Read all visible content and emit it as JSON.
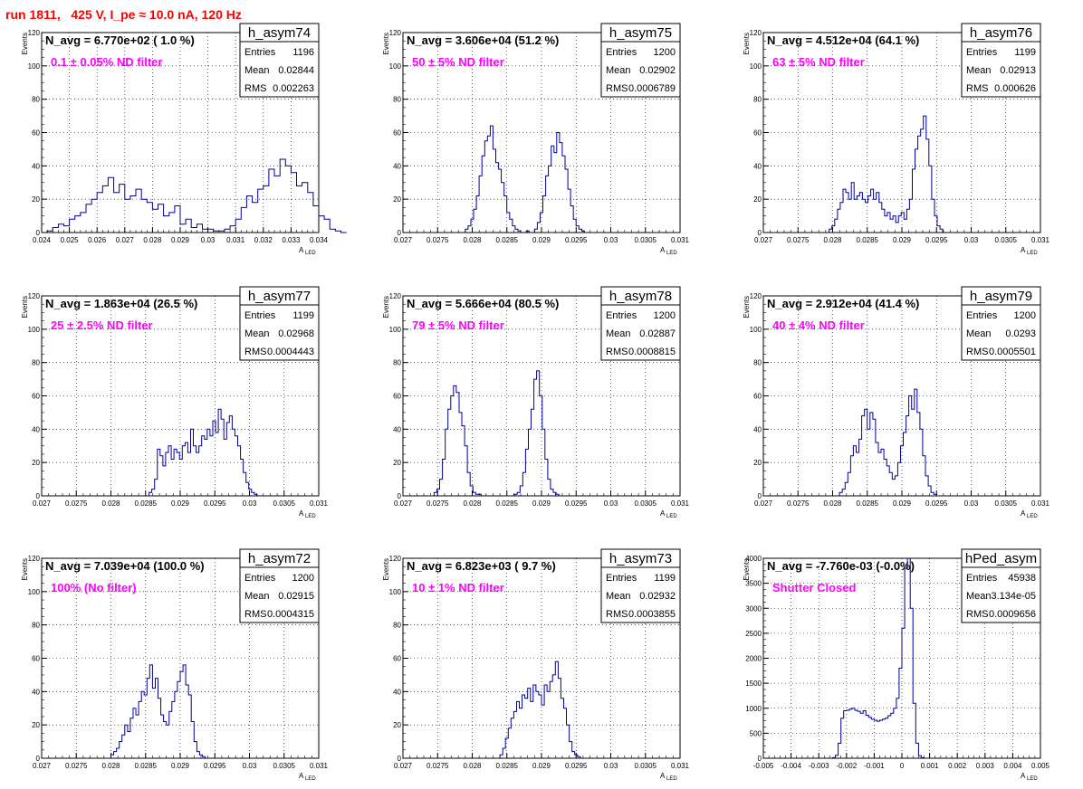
{
  "title": "run 1811,   425 V, I_pe ≈ 10.0 nA, 120 Hz",
  "colors": {
    "title": "#ff0000",
    "filter_label": "#ff00ff",
    "histogram": "#000099",
    "grid": "#000000"
  },
  "axis_labels": {
    "x_main": "A",
    "x_sub": "LED",
    "y": "Events"
  },
  "stats_labels": {
    "entries": "Entries",
    "mean": "Mean",
    "rms": "RMS"
  },
  "chart_data": [
    {
      "type": "histogram",
      "name": "h_asym74",
      "navg": "N_avg = 6.770e+02 ( 1.0 %)",
      "filter": "0.1 ± 0.05% ND filter",
      "stats": {
        "entries": "1196",
        "mean": "0.02844",
        "rms": "0.002263"
      },
      "xlim": [
        0.024,
        0.034
      ],
      "ylim": [
        0,
        120
      ],
      "xticks": [
        "0.024",
        "0.025",
        "0.026",
        "0.027",
        "0.028",
        "0.029",
        "0.03",
        "0.031",
        "0.032",
        "0.033",
        "0.034"
      ],
      "yticks": [
        "0",
        "20",
        "40",
        "60",
        "80",
        "100",
        "120"
      ],
      "x_start": 0.0242,
      "bin_width": 0.0002,
      "counts": [
        1,
        3,
        5,
        4,
        8,
        10,
        12,
        17,
        20,
        24,
        28,
        33,
        24,
        29,
        20,
        22,
        26,
        20,
        18,
        14,
        17,
        10,
        12,
        16,
        5,
        8,
        3,
        5,
        2,
        2,
        1,
        1,
        2,
        4,
        8,
        15,
        22,
        18,
        26,
        28,
        38,
        34,
        44,
        40,
        36,
        28,
        30,
        24,
        16,
        10,
        8,
        2,
        1,
        0
      ]
    },
    {
      "type": "histogram",
      "name": "h_asym75",
      "navg": "N_avg = 3.606e+04 (51.2 %)",
      "filter": "50 ± 5% ND filter",
      "stats": {
        "entries": "1200",
        "mean": "0.02902",
        "rms": "0.0006789"
      },
      "xlim": [
        0.027,
        0.031
      ],
      "ylim": [
        0,
        120
      ],
      "xticks": [
        "0.027",
        "0.0275",
        "0.028",
        "0.0285",
        "0.029",
        "0.0295",
        "0.03",
        "0.0305",
        "0.031"
      ],
      "yticks": [
        "0",
        "20",
        "40",
        "60",
        "80",
        "100",
        "120"
      ],
      "x_start": 0.0279,
      "bin_width": 4e-05,
      "counts": [
        2,
        4,
        8,
        14,
        22,
        34,
        46,
        55,
        58,
        64,
        50,
        42,
        38,
        30,
        22,
        12,
        8,
        4,
        2,
        1,
        0,
        0,
        1,
        0,
        0,
        2,
        6,
        12,
        22,
        34,
        40,
        52,
        48,
        60,
        54,
        46,
        38,
        26,
        16,
        8,
        4,
        2,
        1,
        0
      ]
    },
    {
      "type": "histogram",
      "name": "h_asym76",
      "navg": "N_avg = 4.512e+04 (64.1 %)",
      "filter": "63 ± 5% ND filter",
      "stats": {
        "entries": "1199",
        "mean": "0.02913",
        "rms": "0.000626"
      },
      "xlim": [
        0.027,
        0.031
      ],
      "ylim": [
        0,
        120
      ],
      "xticks": [
        "0.027",
        "0.0275",
        "0.028",
        "0.0285",
        "0.029",
        "0.0295",
        "0.03",
        "0.0305",
        "0.031"
      ],
      "yticks": [
        "0",
        "20",
        "40",
        "60",
        "80",
        "100",
        "120"
      ],
      "x_start": 0.02795,
      "bin_width": 4e-05,
      "counts": [
        2,
        4,
        8,
        14,
        18,
        26,
        24,
        20,
        30,
        20,
        22,
        24,
        20,
        18,
        22,
        26,
        20,
        24,
        18,
        14,
        10,
        12,
        8,
        10,
        6,
        10,
        12,
        8,
        14,
        20,
        38,
        50,
        58,
        62,
        70,
        56,
        40,
        20,
        10,
        4,
        2,
        0
      ]
    },
    {
      "type": "histogram",
      "name": "h_asym77",
      "navg": "N_avg = 1.863e+04 (26.5 %)",
      "filter": "25 ± 2.5% ND filter",
      "stats": {
        "entries": "1199",
        "mean": "0.02968",
        "rms": "0.0004443"
      },
      "xlim": [
        0.027,
        0.031
      ],
      "ylim": [
        0,
        120
      ],
      "xticks": [
        "0.027",
        "0.0275",
        "0.028",
        "0.0285",
        "0.029",
        "0.0295",
        "0.03",
        "0.0305",
        "0.031"
      ],
      "yticks": [
        "0",
        "20",
        "40",
        "60",
        "80",
        "100",
        "120"
      ],
      "x_start": 0.02855,
      "bin_width": 4e-05,
      "counts": [
        2,
        4,
        10,
        28,
        24,
        18,
        26,
        30,
        22,
        28,
        26,
        22,
        30,
        32,
        26,
        40,
        30,
        26,
        30,
        36,
        34,
        40,
        36,
        45,
        38,
        52,
        46,
        34,
        44,
        48,
        40,
        36,
        30,
        22,
        14,
        8,
        4,
        2,
        1,
        0
      ]
    },
    {
      "type": "histogram",
      "name": "h_asym78",
      "navg": "N_avg = 5.666e+04 (80.5 %)",
      "filter": "79 ± 5% ND filter",
      "stats": {
        "entries": "1200",
        "mean": "0.02887",
        "rms": "0.0008815"
      },
      "xlim": [
        0.027,
        0.031
      ],
      "ylim": [
        0,
        120
      ],
      "xticks": [
        "0.027",
        "0.0275",
        "0.028",
        "0.0285",
        "0.029",
        "0.0295",
        "0.03",
        "0.0305",
        "0.031"
      ],
      "yticks": [
        "0",
        "20",
        "40",
        "60",
        "80",
        "100",
        "120"
      ],
      "x_start": 0.02745,
      "bin_width": 4e-05,
      "counts": [
        2,
        4,
        10,
        22,
        40,
        52,
        60,
        66,
        62,
        50,
        42,
        30,
        14,
        6,
        2,
        1,
        1,
        0,
        0,
        0,
        0,
        0,
        0,
        0,
        0,
        0,
        0,
        0,
        0,
        1,
        2,
        6,
        14,
        28,
        40,
        52,
        70,
        75,
        60,
        40,
        22,
        10,
        4,
        2,
        1,
        0
      ]
    },
    {
      "type": "histogram",
      "name": "h_asym79",
      "navg": "N_avg = 2.912e+04 (41.4 %)",
      "filter": "40 ± 4% ND filter",
      "stats": {
        "entries": "1200",
        "mean": "0.0293",
        "rms": "0.0005501"
      },
      "xlim": [
        0.027,
        0.031
      ],
      "ylim": [
        0,
        120
      ],
      "xticks": [
        "0.027",
        "0.0275",
        "0.028",
        "0.0285",
        "0.029",
        "0.0295",
        "0.03",
        "0.0305",
        "0.031"
      ],
      "yticks": [
        "0",
        "20",
        "40",
        "60",
        "80",
        "100",
        "120"
      ],
      "x_start": 0.0281,
      "bin_width": 4e-05,
      "counts": [
        2,
        4,
        8,
        14,
        24,
        30,
        26,
        34,
        48,
        52,
        40,
        50,
        46,
        32,
        26,
        28,
        22,
        18,
        14,
        10,
        12,
        20,
        30,
        38,
        48,
        60,
        52,
        64,
        50,
        40,
        24,
        12,
        6,
        2,
        1,
        0
      ]
    },
    {
      "type": "histogram",
      "name": "h_asym72",
      "navg": "N_avg = 7.039e+04 (100.0 %)",
      "filter": "100% (No filter)",
      "stats": {
        "entries": "1200",
        "mean": "0.02915",
        "rms": "0.0004315"
      },
      "xlim": [
        0.027,
        0.031
      ],
      "ylim": [
        0,
        120
      ],
      "xticks": [
        "0.027",
        "0.0275",
        "0.028",
        "0.0285",
        "0.029",
        "0.0295",
        "0.03",
        "0.0305",
        "0.031"
      ],
      "yticks": [
        "0",
        "20",
        "40",
        "60",
        "80",
        "100",
        "120"
      ],
      "x_start": 0.028,
      "bin_width": 4e-05,
      "counts": [
        2,
        4,
        6,
        10,
        14,
        20,
        16,
        24,
        30,
        26,
        34,
        40,
        38,
        48,
        56,
        42,
        48,
        36,
        26,
        22,
        20,
        28,
        34,
        40,
        46,
        52,
        56,
        44,
        38,
        22,
        10,
        4,
        2,
        1,
        0
      ]
    },
    {
      "type": "histogram",
      "name": "h_asym73",
      "navg": "N_avg = 6.823e+03 ( 9.7 %)",
      "filter": "10 ± 1% ND filter",
      "stats": {
        "entries": "1199",
        "mean": "0.02932",
        "rms": "0.0003855"
      },
      "xlim": [
        0.027,
        0.031
      ],
      "ylim": [
        0,
        120
      ],
      "xticks": [
        "0.027",
        "0.0275",
        "0.028",
        "0.0285",
        "0.029",
        "0.0295",
        "0.03",
        "0.0305",
        "0.031"
      ],
      "yticks": [
        "0",
        "20",
        "40",
        "60",
        "80",
        "100",
        "120"
      ],
      "x_start": 0.0284,
      "bin_width": 4e-05,
      "counts": [
        2,
        6,
        12,
        18,
        24,
        28,
        34,
        30,
        38,
        36,
        42,
        34,
        44,
        40,
        38,
        32,
        44,
        40,
        46,
        50,
        58,
        48,
        36,
        30,
        20,
        10,
        4,
        2,
        1,
        0
      ]
    },
    {
      "type": "histogram",
      "name": "hPed_asym",
      "navg": "N_avg = -7.760e-03 (-0.0%)",
      "filter": "Shutter Closed",
      "stats": {
        "entries": "45938",
        "mean": "3.134e-05",
        "rms": "0.0009656"
      },
      "xlim": [
        -0.005,
        0.005
      ],
      "ylim": [
        0,
        4000
      ],
      "xticks": [
        "-0.005",
        "-0.004",
        "-0.003",
        "-0.002",
        "-0.001",
        "0",
        "0.001",
        "0.002",
        "0.003",
        "0.004",
        "0.005"
      ],
      "yticks": [
        "0",
        "500",
        "1000",
        "1500",
        "2000",
        "2500",
        "3000",
        "3500",
        "4000"
      ],
      "x_start": -0.0025,
      "bin_width": 0.0001,
      "counts": [
        10,
        60,
        300,
        800,
        950,
        960,
        980,
        1000,
        960,
        940,
        900,
        950,
        860,
        820,
        780,
        760,
        740,
        760,
        780,
        800,
        850,
        900,
        1000,
        1200,
        1800,
        2600,
        3800,
        4000,
        3000,
        1100,
        300,
        50,
        10,
        0
      ]
    }
  ]
}
